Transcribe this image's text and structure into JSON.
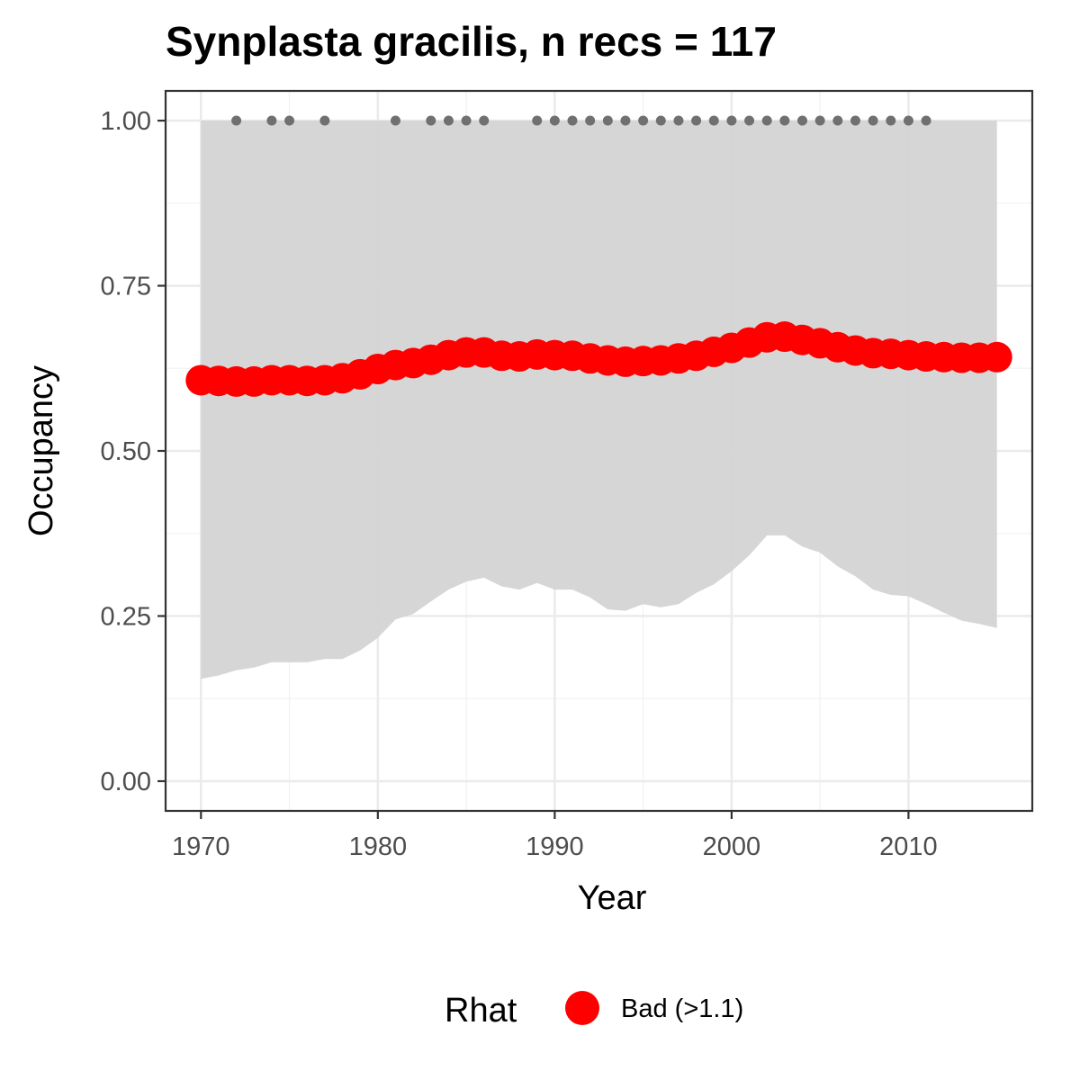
{
  "chart_data": {
    "type": "line",
    "title": "Synplasta gracilis, n recs = 117",
    "xlabel": "Year",
    "ylabel": "Occupancy",
    "xlim": [
      1968,
      2017
    ],
    "ylim": [
      -0.045,
      1.045
    ],
    "x_ticks": [
      1970,
      1980,
      1990,
      2000,
      2010
    ],
    "x_tick_labels": [
      "1970",
      "1980",
      "1990",
      "2000",
      "2010"
    ],
    "y_ticks": [
      0,
      0.25,
      0.5,
      0.75,
      1.0
    ],
    "y_tick_labels": [
      "0.00",
      "0.25",
      "0.50",
      "0.75",
      "1.00"
    ],
    "grid": true,
    "years": [
      1970,
      1971,
      1972,
      1973,
      1974,
      1975,
      1976,
      1977,
      1978,
      1979,
      1980,
      1981,
      1982,
      1983,
      1984,
      1985,
      1986,
      1987,
      1988,
      1989,
      1990,
      1991,
      1992,
      1993,
      1994,
      1995,
      1996,
      1997,
      1998,
      1999,
      2000,
      2001,
      2002,
      2003,
      2004,
      2005,
      2006,
      2007,
      2008,
      2009,
      2010,
      2011,
      2012,
      2013,
      2014,
      2015
    ],
    "series": [
      {
        "name": "Bad (>1.1)",
        "color": "#ff0000",
        "values": [
          0.607,
          0.606,
          0.605,
          0.605,
          0.607,
          0.607,
          0.606,
          0.607,
          0.61,
          0.616,
          0.624,
          0.63,
          0.633,
          0.638,
          0.645,
          0.649,
          0.649,
          0.644,
          0.643,
          0.646,
          0.645,
          0.644,
          0.64,
          0.637,
          0.635,
          0.636,
          0.637,
          0.64,
          0.644,
          0.65,
          0.656,
          0.664,
          0.672,
          0.673,
          0.668,
          0.663,
          0.657,
          0.652,
          0.648,
          0.647,
          0.645,
          0.643,
          0.642,
          0.641,
          0.641,
          0.642
        ]
      }
    ],
    "ribbon": {
      "upper": [
        1.0,
        1.0,
        1.0,
        1.0,
        1.0,
        1.0,
        1.0,
        1.0,
        1.0,
        1.0,
        1.0,
        1.0,
        1.0,
        1.0,
        1.0,
        1.0,
        1.0,
        1.0,
        1.0,
        1.0,
        1.0,
        1.0,
        1.0,
        1.0,
        1.0,
        1.0,
        1.0,
        1.0,
        1.0,
        1.0,
        1.0,
        1.0,
        1.0,
        1.0,
        1.0,
        1.0,
        1.0,
        1.0,
        1.0,
        1.0,
        1.0,
        1.0,
        1.0,
        1.0,
        1.0,
        1.0
      ],
      "lower": [
        0.155,
        0.16,
        0.168,
        0.172,
        0.18,
        0.18,
        0.18,
        0.185,
        0.185,
        0.198,
        0.217,
        0.245,
        0.253,
        0.272,
        0.29,
        0.302,
        0.308,
        0.295,
        0.29,
        0.3,
        0.29,
        0.29,
        0.278,
        0.26,
        0.258,
        0.268,
        0.263,
        0.268,
        0.285,
        0.298,
        0.318,
        0.342,
        0.372,
        0.372,
        0.355,
        0.346,
        0.325,
        0.31,
        0.29,
        0.282,
        0.28,
        0.268,
        0.255,
        0.243,
        0.238,
        0.232
      ],
      "color": "#d3d3d3"
    },
    "records": {
      "years": [
        1972,
        1974,
        1975,
        1977,
        1981,
        1983,
        1984,
        1985,
        1986,
        1989,
        1990,
        1991,
        1992,
        1993,
        1994,
        1995,
        1996,
        1997,
        1998,
        1999,
        2000,
        2001,
        2002,
        2003,
        2004,
        2005,
        2006,
        2007,
        2008,
        2009,
        2010,
        2011
      ],
      "y": 1.0,
      "color": "#707070"
    },
    "legend": {
      "title": "Rhat",
      "entries": [
        "Bad (>1.1)"
      ],
      "position": "bottom"
    }
  }
}
